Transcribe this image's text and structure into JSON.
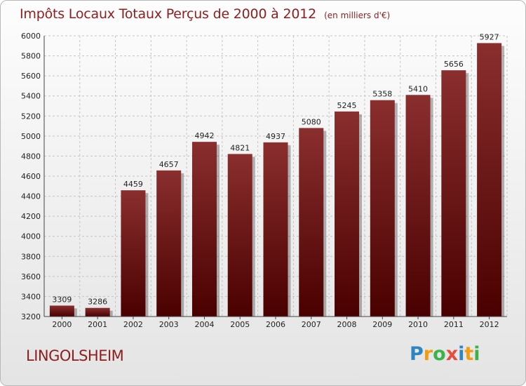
{
  "header": {
    "title": "Impôts Locaux Totaux Perçus de 2000 à 2012",
    "unit": "(en milliers d'€)"
  },
  "footer": {
    "city": "LINGOLSHEIM",
    "logo_text": "Proxiti",
    "logo_colors": [
      "#2e86c1",
      "#f39c12",
      "#3bb34a",
      "#e74c3c",
      "#2e86c1",
      "#f39c12",
      "#3bb34a"
    ]
  },
  "chart_data": {
    "type": "bar",
    "title": "Impôts Locaux Totaux Perçus de 2000 à 2012",
    "xlabel": "",
    "ylabel": "",
    "categories": [
      "2000",
      "2001",
      "2002",
      "2003",
      "2004",
      "2005",
      "2006",
      "2007",
      "2008",
      "2009",
      "2010",
      "2011",
      "2012"
    ],
    "values": [
      3309,
      3286,
      4459,
      4657,
      4942,
      4821,
      4937,
      5080,
      5245,
      5358,
      5410,
      5656,
      5927
    ],
    "ylim": [
      3200,
      6000
    ],
    "yticks": [
      3200,
      3400,
      3600,
      3800,
      4000,
      4200,
      4400,
      4600,
      4800,
      5000,
      5200,
      5400,
      5600,
      5800,
      6000
    ],
    "grid": true,
    "bar_color_top": "#8a2e2e",
    "bar_color_bottom": "#4a0000"
  }
}
